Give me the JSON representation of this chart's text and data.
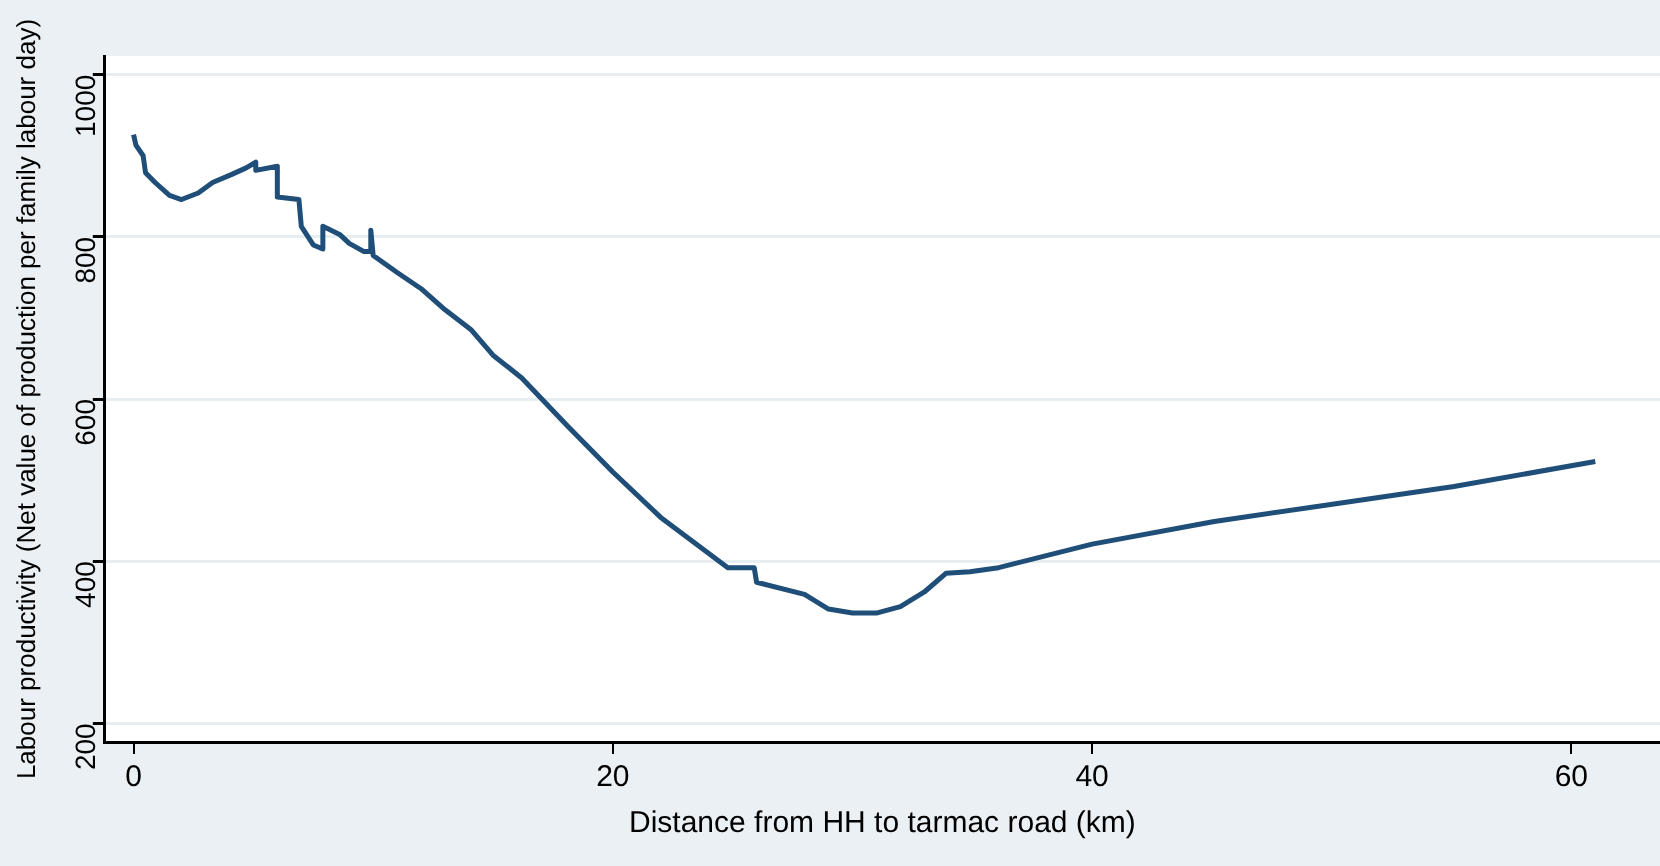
{
  "chart_data": {
    "type": "line",
    "xlabel": "Distance from HH to tarmac road (km)",
    "ylabel": "Labour productivity (Net value of production per family labour day)",
    "xlim": [
      -1.2,
      63.7
    ],
    "xticks": [
      0,
      20,
      40,
      60
    ],
    "ylim": [
      177,
      1023
    ],
    "yticks": [
      200,
      400,
      600,
      800,
      1000
    ],
    "grid": "y",
    "legend": false,
    "marker": "none",
    "line_style": "solid",
    "series": [
      {
        "color": "#1f4e79",
        "x": [
          0,
          0.1,
          0.4,
          0.5,
          0.9,
          1.5,
          2,
          2.7,
          3.3,
          4.1,
          4.7,
          5.1,
          5.1,
          6,
          6,
          6.9,
          7,
          7.5,
          7.9,
          7.9,
          8.6,
          9,
          9.6,
          9.9,
          9.9,
          10,
          11,
          12,
          13,
          14.1,
          15,
          16.2,
          18.1,
          20,
          22,
          24.8,
          25.9,
          26,
          28,
          29,
          30,
          31,
          32,
          33,
          33.9,
          34.9,
          36.1,
          40,
          45.1,
          55.1,
          61
        ],
        "values": [
          926,
          913,
          900,
          879,
          867,
          851,
          846,
          854,
          867,
          877,
          885,
          892,
          882,
          887,
          849,
          846,
          813,
          790,
          785,
          813,
          803,
          792,
          782,
          782,
          808,
          777,
          756,
          736,
          710,
          685,
          654,
          626,
          567,
          510,
          454,
          392,
          392,
          374,
          359,
          341,
          336,
          336,
          344,
          362,
          385,
          387,
          392,
          421,
          449,
          492,
          523
        ]
      }
    ]
  }
}
